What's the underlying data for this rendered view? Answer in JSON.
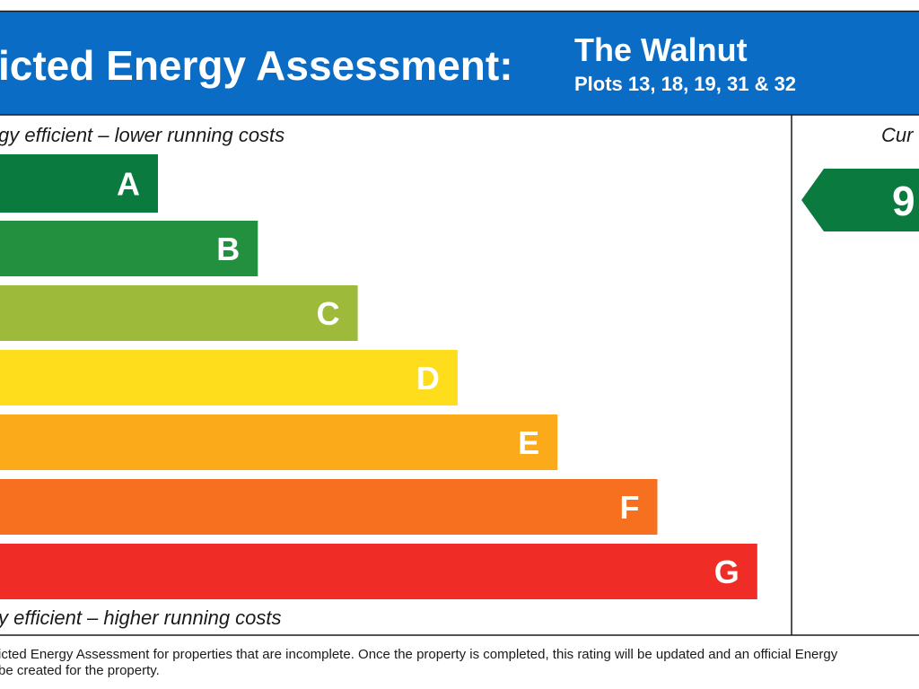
{
  "header": {
    "title": "icted Energy Assessment:",
    "property": "The Walnut",
    "plots": "Plots 13, 18, 19, 31 & 32"
  },
  "scale": {
    "top_label": "gy efficient – lower running costs",
    "bands": [
      {
        "letter": "A",
        "color": "#0b7a3e"
      },
      {
        "letter": "B",
        "color": "#22903f"
      },
      {
        "letter": "C",
        "color": "#9dba3a"
      },
      {
        "letter": "D",
        "color": "#fedd1d"
      },
      {
        "letter": "E",
        "color": "#fbab1a"
      },
      {
        "letter": "F",
        "color": "#f6701f"
      },
      {
        "letter": "G",
        "color": "#ef2c25"
      }
    ],
    "bottom_label": "y efficient – higher running costs"
  },
  "current": {
    "heading": "Cur",
    "rating": "9",
    "color": "#0b7a3e"
  },
  "footer": {
    "lines": [
      "icted Energy Assessment for properties that are incomplete. Once the property is completed, this rating will be updated and an official Energy",
      "be created for the property."
    ]
  }
}
